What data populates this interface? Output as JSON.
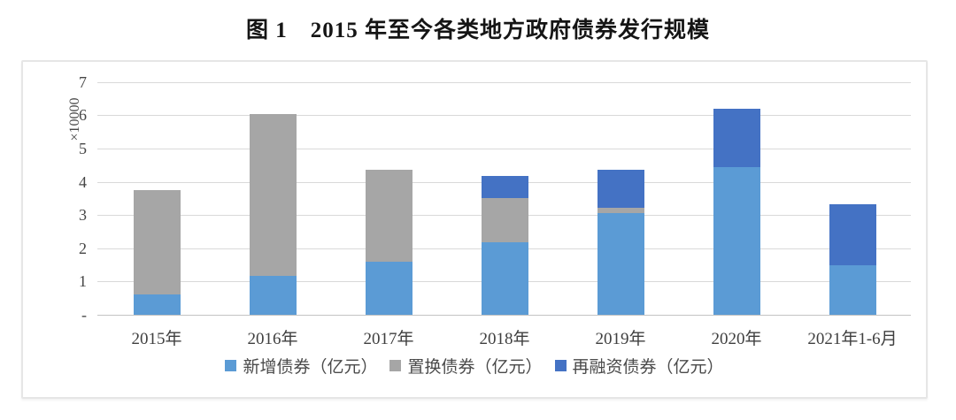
{
  "title": "图 1　2015 年至今各类地方政府债券发行规模",
  "chart_data": {
    "type": "bar",
    "stacked": true,
    "title": "图 1　2015 年至今各类地方政府债券发行规模",
    "ylabel": "×10000",
    "xlabel": "",
    "ylim": [
      0,
      7
    ],
    "ytick_labels": [
      "-",
      "1",
      "2",
      "3",
      "4",
      "5",
      "6",
      "7"
    ],
    "grid": true,
    "legend_position": "bottom",
    "categories": [
      "2015年",
      "2016年",
      "2017年",
      "2018年",
      "2019年",
      "2020年",
      "2021年1-6月"
    ],
    "series": [
      {
        "name": "新增债券（亿元）",
        "color": "#5b9bd5",
        "values": [
          0.6,
          1.17,
          1.59,
          2.17,
          3.07,
          4.45,
          1.48
        ]
      },
      {
        "name": "置换债券（亿元）",
        "color": "#a6a6a6",
        "values": [
          3.15,
          4.88,
          2.77,
          1.35,
          0.15,
          0.0,
          0.0
        ]
      },
      {
        "name": "再融资债券（亿元）",
        "color": "#4472c4",
        "values": [
          0.0,
          0.0,
          0.0,
          0.65,
          1.14,
          1.75,
          1.85
        ]
      }
    ],
    "stack_totals": [
      3.75,
      6.05,
      4.36,
      4.17,
      4.36,
      6.2,
      3.33
    ]
  },
  "colors": {
    "new_bond": "#5b9bd5",
    "swap_bond": "#a6a6a6",
    "refinancing_bond": "#4472c4",
    "gridline": "#d9d9d9"
  }
}
